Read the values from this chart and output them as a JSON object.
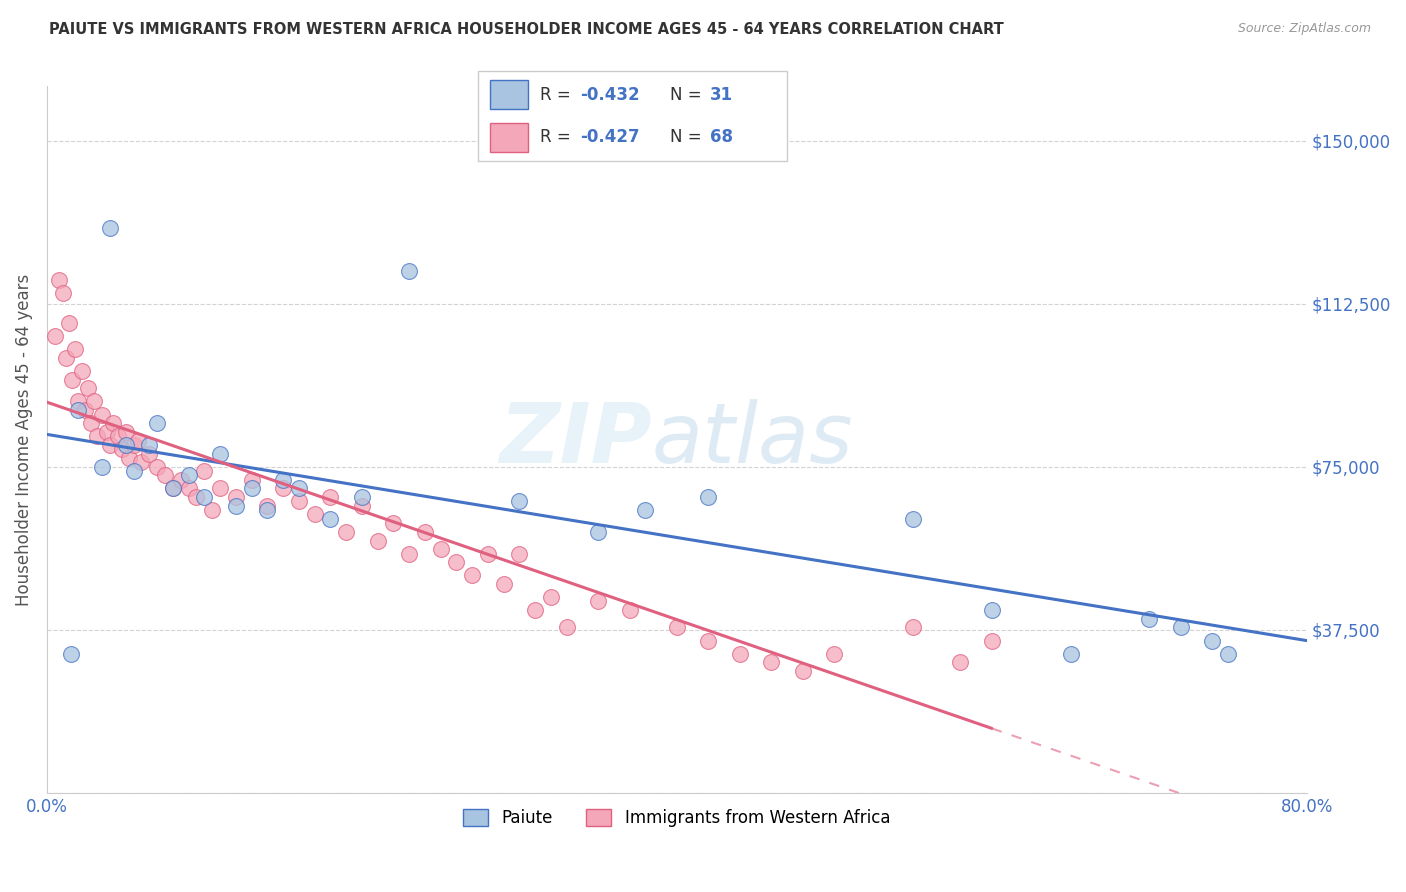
{
  "title": "PAIUTE VS IMMIGRANTS FROM WESTERN AFRICA HOUSEHOLDER INCOME AGES 45 - 64 YEARS CORRELATION CHART",
  "source": "Source: ZipAtlas.com",
  "ylabel": "Householder Income Ages 45 - 64 years",
  "xmin": 0.0,
  "xmax": 80.0,
  "ymin": 0,
  "ymax": 162500,
  "yticks": [
    0,
    37500,
    75000,
    112500,
    150000
  ],
  "ytick_labels": [
    "",
    "$37,500",
    "$75,000",
    "$112,500",
    "$150,000"
  ],
  "paiute_color": "#a8c4e0",
  "paiute_line_color": "#4472c4",
  "western_africa_color": "#f4a7b9",
  "western_africa_line_color": "#e06080",
  "legend_R_paiute": "-0.432",
  "legend_N_paiute": "31",
  "legend_R_western": "-0.427",
  "legend_N_western": "68",
  "legend_label_paiute": "Paiute",
  "legend_label_western": "Immigrants from Western Africa",
  "title_color": "#333333",
  "axis_color": "#4472c4",
  "grid_color": "#c8c8c8",
  "paiute_x": [
    1.5,
    4.0,
    2.0,
    3.5,
    5.0,
    5.5,
    7.0,
    8.0,
    6.5,
    9.0,
    10.0,
    11.0,
    12.0,
    13.0,
    14.0,
    15.0,
    16.0,
    18.0,
    20.0,
    23.0,
    30.0,
    35.0,
    38.0,
    42.0,
    55.0,
    60.0,
    65.0,
    70.0,
    72.0,
    74.0,
    75.0
  ],
  "paiute_y": [
    32000,
    130000,
    88000,
    75000,
    80000,
    74000,
    85000,
    70000,
    80000,
    73000,
    68000,
    78000,
    66000,
    70000,
    65000,
    72000,
    70000,
    63000,
    68000,
    120000,
    67000,
    60000,
    65000,
    68000,
    63000,
    42000,
    32000,
    40000,
    38000,
    35000,
    32000
  ],
  "western_x": [
    0.5,
    0.8,
    1.0,
    1.2,
    1.4,
    1.6,
    1.8,
    2.0,
    2.2,
    2.4,
    2.6,
    2.8,
    3.0,
    3.2,
    3.5,
    3.8,
    4.0,
    4.2,
    4.5,
    4.8,
    5.0,
    5.2,
    5.5,
    5.8,
    6.0,
    6.5,
    7.0,
    7.5,
    8.0,
    8.5,
    9.0,
    9.5,
    10.0,
    10.5,
    11.0,
    12.0,
    13.0,
    14.0,
    15.0,
    16.0,
    17.0,
    18.0,
    19.0,
    20.0,
    21.0,
    22.0,
    23.0,
    24.0,
    25.0,
    26.0,
    27.0,
    28.0,
    29.0,
    30.0,
    31.0,
    32.0,
    33.0,
    35.0,
    37.0,
    40.0,
    42.0,
    44.0,
    46.0,
    48.0,
    50.0,
    55.0,
    58.0,
    60.0
  ],
  "western_y": [
    105000,
    118000,
    115000,
    100000,
    108000,
    95000,
    102000,
    90000,
    97000,
    88000,
    93000,
    85000,
    90000,
    82000,
    87000,
    83000,
    80000,
    85000,
    82000,
    79000,
    83000,
    77000,
    80000,
    81000,
    76000,
    78000,
    75000,
    73000,
    70000,
    72000,
    70000,
    68000,
    74000,
    65000,
    70000,
    68000,
    72000,
    66000,
    70000,
    67000,
    64000,
    68000,
    60000,
    66000,
    58000,
    62000,
    55000,
    60000,
    56000,
    53000,
    50000,
    55000,
    48000,
    55000,
    42000,
    45000,
    38000,
    44000,
    42000,
    38000,
    35000,
    32000,
    30000,
    28000,
    32000,
    38000,
    30000,
    35000
  ]
}
